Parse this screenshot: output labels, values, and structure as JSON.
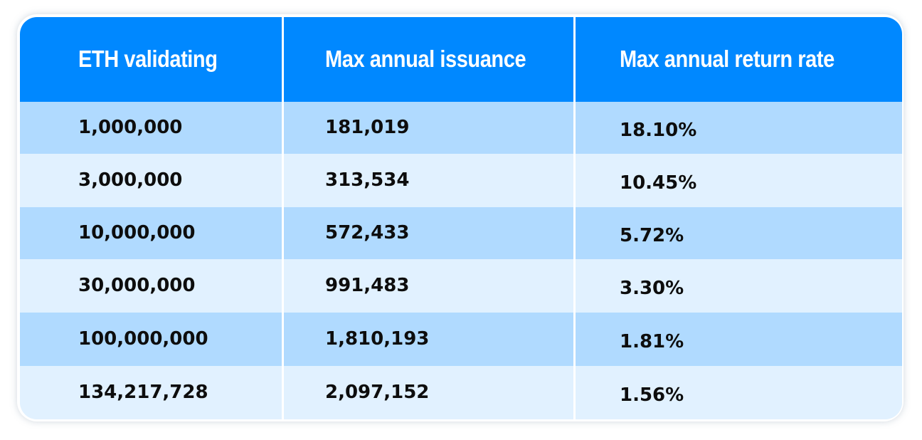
{
  "chart_data": {
    "type": "table",
    "columns": [
      "ETH validating",
      "Max annual issuance",
      "Max annual return rate"
    ],
    "rows": [
      [
        "1,000,000",
        "181,019",
        "18.10%"
      ],
      [
        "3,000,000",
        "313,534",
        "10.45%"
      ],
      [
        "10,000,000",
        "572,433",
        "5.72%"
      ],
      [
        "30,000,000",
        "991,483",
        "3.30%"
      ],
      [
        "100,000,000",
        "1,810,193",
        "1.81%"
      ],
      [
        "134,217,728",
        "2,097,152",
        "1.56%"
      ]
    ],
    "colors": {
      "header": "#0088ff",
      "row_dark": "#b0daff",
      "row_light": "#e1f1ff",
      "header_text": "#ffffff",
      "body_text": "#0d0d0d"
    }
  }
}
